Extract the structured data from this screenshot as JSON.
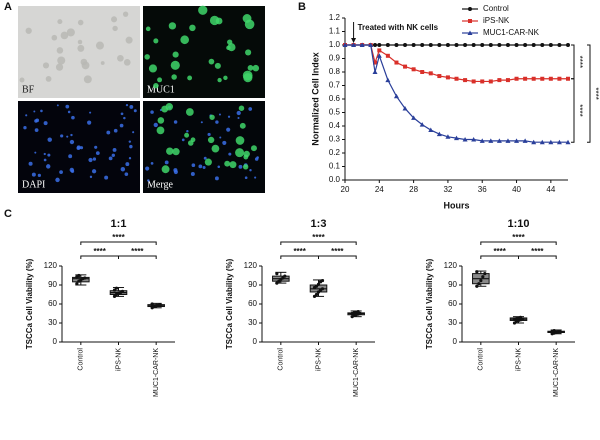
{
  "figure": {
    "panel_labels": [
      "A",
      "B",
      "C"
    ],
    "image_labels": [
      "BF",
      "MUC1",
      "DAPI",
      "Merge"
    ]
  },
  "chart_data": [
    {
      "type": "line",
      "x_label": "Hours",
      "y_label": "Normalized Cell Index",
      "annotation": "Treated with NK cells",
      "x": [
        20,
        21,
        22,
        23,
        23.5,
        24,
        25,
        26,
        27,
        28,
        29,
        30,
        31,
        32,
        33,
        34,
        35,
        36,
        37,
        38,
        39,
        40,
        41,
        42,
        43,
        44,
        45,
        46
      ],
      "series": [
        {
          "name": "Control",
          "color": "#111111",
          "marker": "circle",
          "values": [
            1,
            1,
            1,
            1,
            1,
            1,
            1,
            1,
            1,
            1,
            1,
            1,
            1,
            1,
            1,
            1,
            1,
            1,
            1,
            1,
            1,
            1,
            1,
            1,
            1,
            1,
            1,
            1
          ]
        },
        {
          "name": "iPS-NK",
          "color": "#d9302a",
          "marker": "square",
          "values": [
            1,
            1,
            1,
            1,
            0.87,
            0.96,
            0.92,
            0.87,
            0.84,
            0.82,
            0.8,
            0.79,
            0.77,
            0.76,
            0.75,
            0.74,
            0.73,
            0.73,
            0.73,
            0.74,
            0.74,
            0.75,
            0.75,
            0.75,
            0.75,
            0.75,
            0.75,
            0.75
          ]
        },
        {
          "name": "MUC1-CAR-NK",
          "color": "#2a3f9a",
          "marker": "triangle",
          "values": [
            1,
            1,
            1,
            1,
            0.8,
            0.92,
            0.74,
            0.62,
            0.53,
            0.46,
            0.41,
            0.37,
            0.34,
            0.32,
            0.31,
            0.3,
            0.3,
            0.29,
            0.29,
            0.29,
            0.29,
            0.29,
            0.29,
            0.28,
            0.28,
            0.28,
            0.28,
            0.28
          ]
        }
      ],
      "xlim": [
        20,
        46
      ],
      "xticks": [
        20,
        24,
        28,
        32,
        36,
        40,
        44
      ],
      "ylim": [
        0,
        1.2
      ],
      "yticks": [
        {
          "value": 0,
          "label": "0.0"
        },
        0.1,
        0.2,
        0.3,
        0.4,
        0.5,
        0.6,
        0.7,
        0.8,
        0.9,
        {
          "value": 1,
          "label": "1.0"
        },
        1.1,
        1.2
      ],
      "brackets": [
        {
          "label": "****",
          "span": [
            "Control",
            "iPS-NK"
          ]
        },
        {
          "label": "****",
          "span": [
            "iPS-NK",
            "MUC1-CAR-NK"
          ]
        },
        {
          "label": "****",
          "span": [
            "Control",
            "MUC1-CAR-NK"
          ]
        }
      ]
    },
    {
      "type": "box",
      "title": "1:1",
      "y_label": "TSCCa Cell Viability (%)",
      "categories": [
        "Control",
        "iPS-NK",
        "MUC1-CAR-NK"
      ],
      "ylim": [
        0,
        120
      ],
      "yticks": [
        0,
        30,
        60,
        90,
        120
      ],
      "boxes": [
        {
          "min": 90,
          "q1": 95,
          "median": 100,
          "q3": 102,
          "max": 106,
          "points": [
            92,
            96,
            98,
            100,
            101,
            103,
            105
          ]
        },
        {
          "min": 72,
          "q1": 75,
          "median": 78,
          "q3": 81,
          "max": 86,
          "points": [
            72,
            75,
            77,
            78,
            80,
            82,
            85
          ]
        },
        {
          "min": 54,
          "q1": 56,
          "median": 57,
          "q3": 59,
          "max": 61,
          "points": [
            54,
            56,
            57,
            58,
            59,
            60
          ]
        }
      ],
      "brackets": [
        {
          "label": "****",
          "span": [
            "Control",
            "MUC1-CAR-NK"
          ]
        },
        {
          "label": "****",
          "span": [
            "Control",
            "iPS-NK"
          ]
        },
        {
          "label": "****",
          "span": [
            "iPS-NK",
            "MUC1-CAR-NK"
          ]
        }
      ]
    },
    {
      "type": "box",
      "title": "1:3",
      "y_label": "TSCCa Cell Viability (%)",
      "categories": [
        "Control",
        "iPS-NK",
        "MUC1-CAR-NK"
      ],
      "ylim": [
        0,
        120
      ],
      "yticks": [
        0,
        30,
        60,
        90,
        120
      ],
      "boxes": [
        {
          "min": 93,
          "q1": 96,
          "median": 100,
          "q3": 104,
          "max": 110,
          "points": [
            93,
            96,
            99,
            101,
            104,
            108
          ]
        },
        {
          "min": 72,
          "q1": 79,
          "median": 84,
          "q3": 90,
          "max": 98,
          "points": [
            72,
            75,
            79,
            82,
            84,
            86,
            88,
            91,
            95,
            97
          ]
        },
        {
          "min": 40,
          "q1": 43,
          "median": 45,
          "q3": 46,
          "max": 49,
          "points": [
            40,
            42,
            43,
            44,
            45,
            45,
            46,
            47,
            48
          ]
        }
      ],
      "brackets": [
        {
          "label": "****",
          "span": [
            "Control",
            "MUC1-CAR-NK"
          ]
        },
        {
          "label": "****",
          "span": [
            "Control",
            "iPS-NK"
          ]
        },
        {
          "label": "****",
          "span": [
            "iPS-NK",
            "MUC1-CAR-NK"
          ]
        }
      ]
    },
    {
      "type": "box",
      "title": "1:10",
      "y_label": "TSCCa Cell Viability (%)",
      "categories": [
        "Control",
        "iPS-NK",
        "MUC1-CAR-NK"
      ],
      "ylim": [
        0,
        120
      ],
      "yticks": [
        0,
        30,
        60,
        90,
        120
      ],
      "boxes": [
        {
          "min": 88,
          "q1": 92,
          "median": 100,
          "q3": 108,
          "max": 112,
          "points": [
            88,
            92,
            97,
            103,
            108,
            111
          ]
        },
        {
          "min": 30,
          "q1": 34,
          "median": 36,
          "q3": 38,
          "max": 40,
          "points": [
            30,
            33,
            34,
            35,
            36,
            36,
            37,
            38,
            39
          ]
        },
        {
          "min": 13,
          "q1": 15,
          "median": 16,
          "q3": 17,
          "max": 19,
          "points": [
            13,
            14,
            15,
            16,
            16,
            17,
            18
          ]
        }
      ],
      "brackets": [
        {
          "label": "****",
          "span": [
            "Control",
            "MUC1-CAR-NK"
          ]
        },
        {
          "label": "****",
          "span": [
            "Control",
            "iPS-NK"
          ]
        },
        {
          "label": "****",
          "span": [
            "iPS-NK",
            "MUC1-CAR-NK"
          ]
        }
      ]
    }
  ]
}
